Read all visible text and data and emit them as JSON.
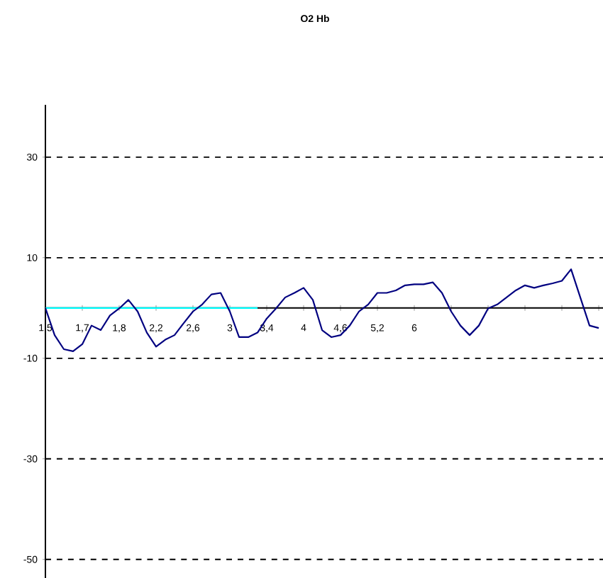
{
  "chart_data": {
    "type": "line",
    "title": "O2 Hb",
    "categories": [
      "1,5",
      null,
      null,
      null,
      "1,7",
      null,
      null,
      null,
      "1,8",
      null,
      null,
      null,
      "2,2",
      null,
      null,
      null,
      "2,6",
      null,
      null,
      null,
      "3",
      null,
      null,
      null,
      "3,4",
      null,
      null,
      null,
      "4",
      null,
      null,
      null,
      "4,6",
      null,
      null,
      null,
      "5,2",
      null,
      null,
      null,
      "6",
      null,
      null,
      null,
      null,
      null,
      null,
      null,
      null,
      null,
      null,
      null,
      null,
      null,
      null,
      null,
      null,
      null,
      null,
      null,
      null
    ],
    "series": [
      {
        "color": "#000080",
        "values": [
          0,
          -5.4,
          -8.2,
          -8.6,
          -7.2,
          -3.5,
          -4.4,
          -1.5,
          -0.1,
          1.6,
          -0.7,
          -4.9,
          -7.7,
          -6.3,
          -5.4,
          -3,
          -0.7,
          0.7,
          2.7,
          3,
          -0.7,
          -5.8,
          -5.8,
          -4.9,
          -2.1,
          -0.1,
          2.1,
          3,
          4,
          1.6,
          -4.4,
          -5.8,
          -5.4,
          -3.5,
          -0.7,
          0.7,
          3,
          3,
          3.5,
          4.5,
          4.7,
          4.7,
          5.1,
          3,
          -0.7,
          -3.5,
          -5.4,
          -3.5,
          -0.1,
          0.7,
          2.1,
          3.5,
          4.5,
          4,
          4.5,
          4.9,
          5.4,
          7.7,
          2.1,
          -3.5,
          -4
        ]
      },
      {
        "color": "#00ffff",
        "values": [
          0,
          0,
          0,
          0,
          0,
          0,
          0,
          0,
          0,
          0,
          0,
          0,
          0,
          0,
          0,
          0,
          0,
          0,
          0,
          0,
          0,
          0,
          0,
          0,
          null,
          null,
          null,
          null,
          null,
          null,
          null,
          null,
          null,
          null,
          null,
          null,
          null,
          null,
          null,
          null,
          null,
          null,
          null,
          null,
          null,
          null,
          null,
          null,
          null,
          null,
          null,
          null,
          null,
          null,
          null,
          null,
          null,
          null,
          null,
          null,
          null
        ]
      }
    ],
    "ylim": [
      -53.7,
      40.4
    ],
    "yticks": [
      30,
      10,
      -10,
      -30,
      -50
    ],
    "grid": "y",
    "marker": "none"
  }
}
